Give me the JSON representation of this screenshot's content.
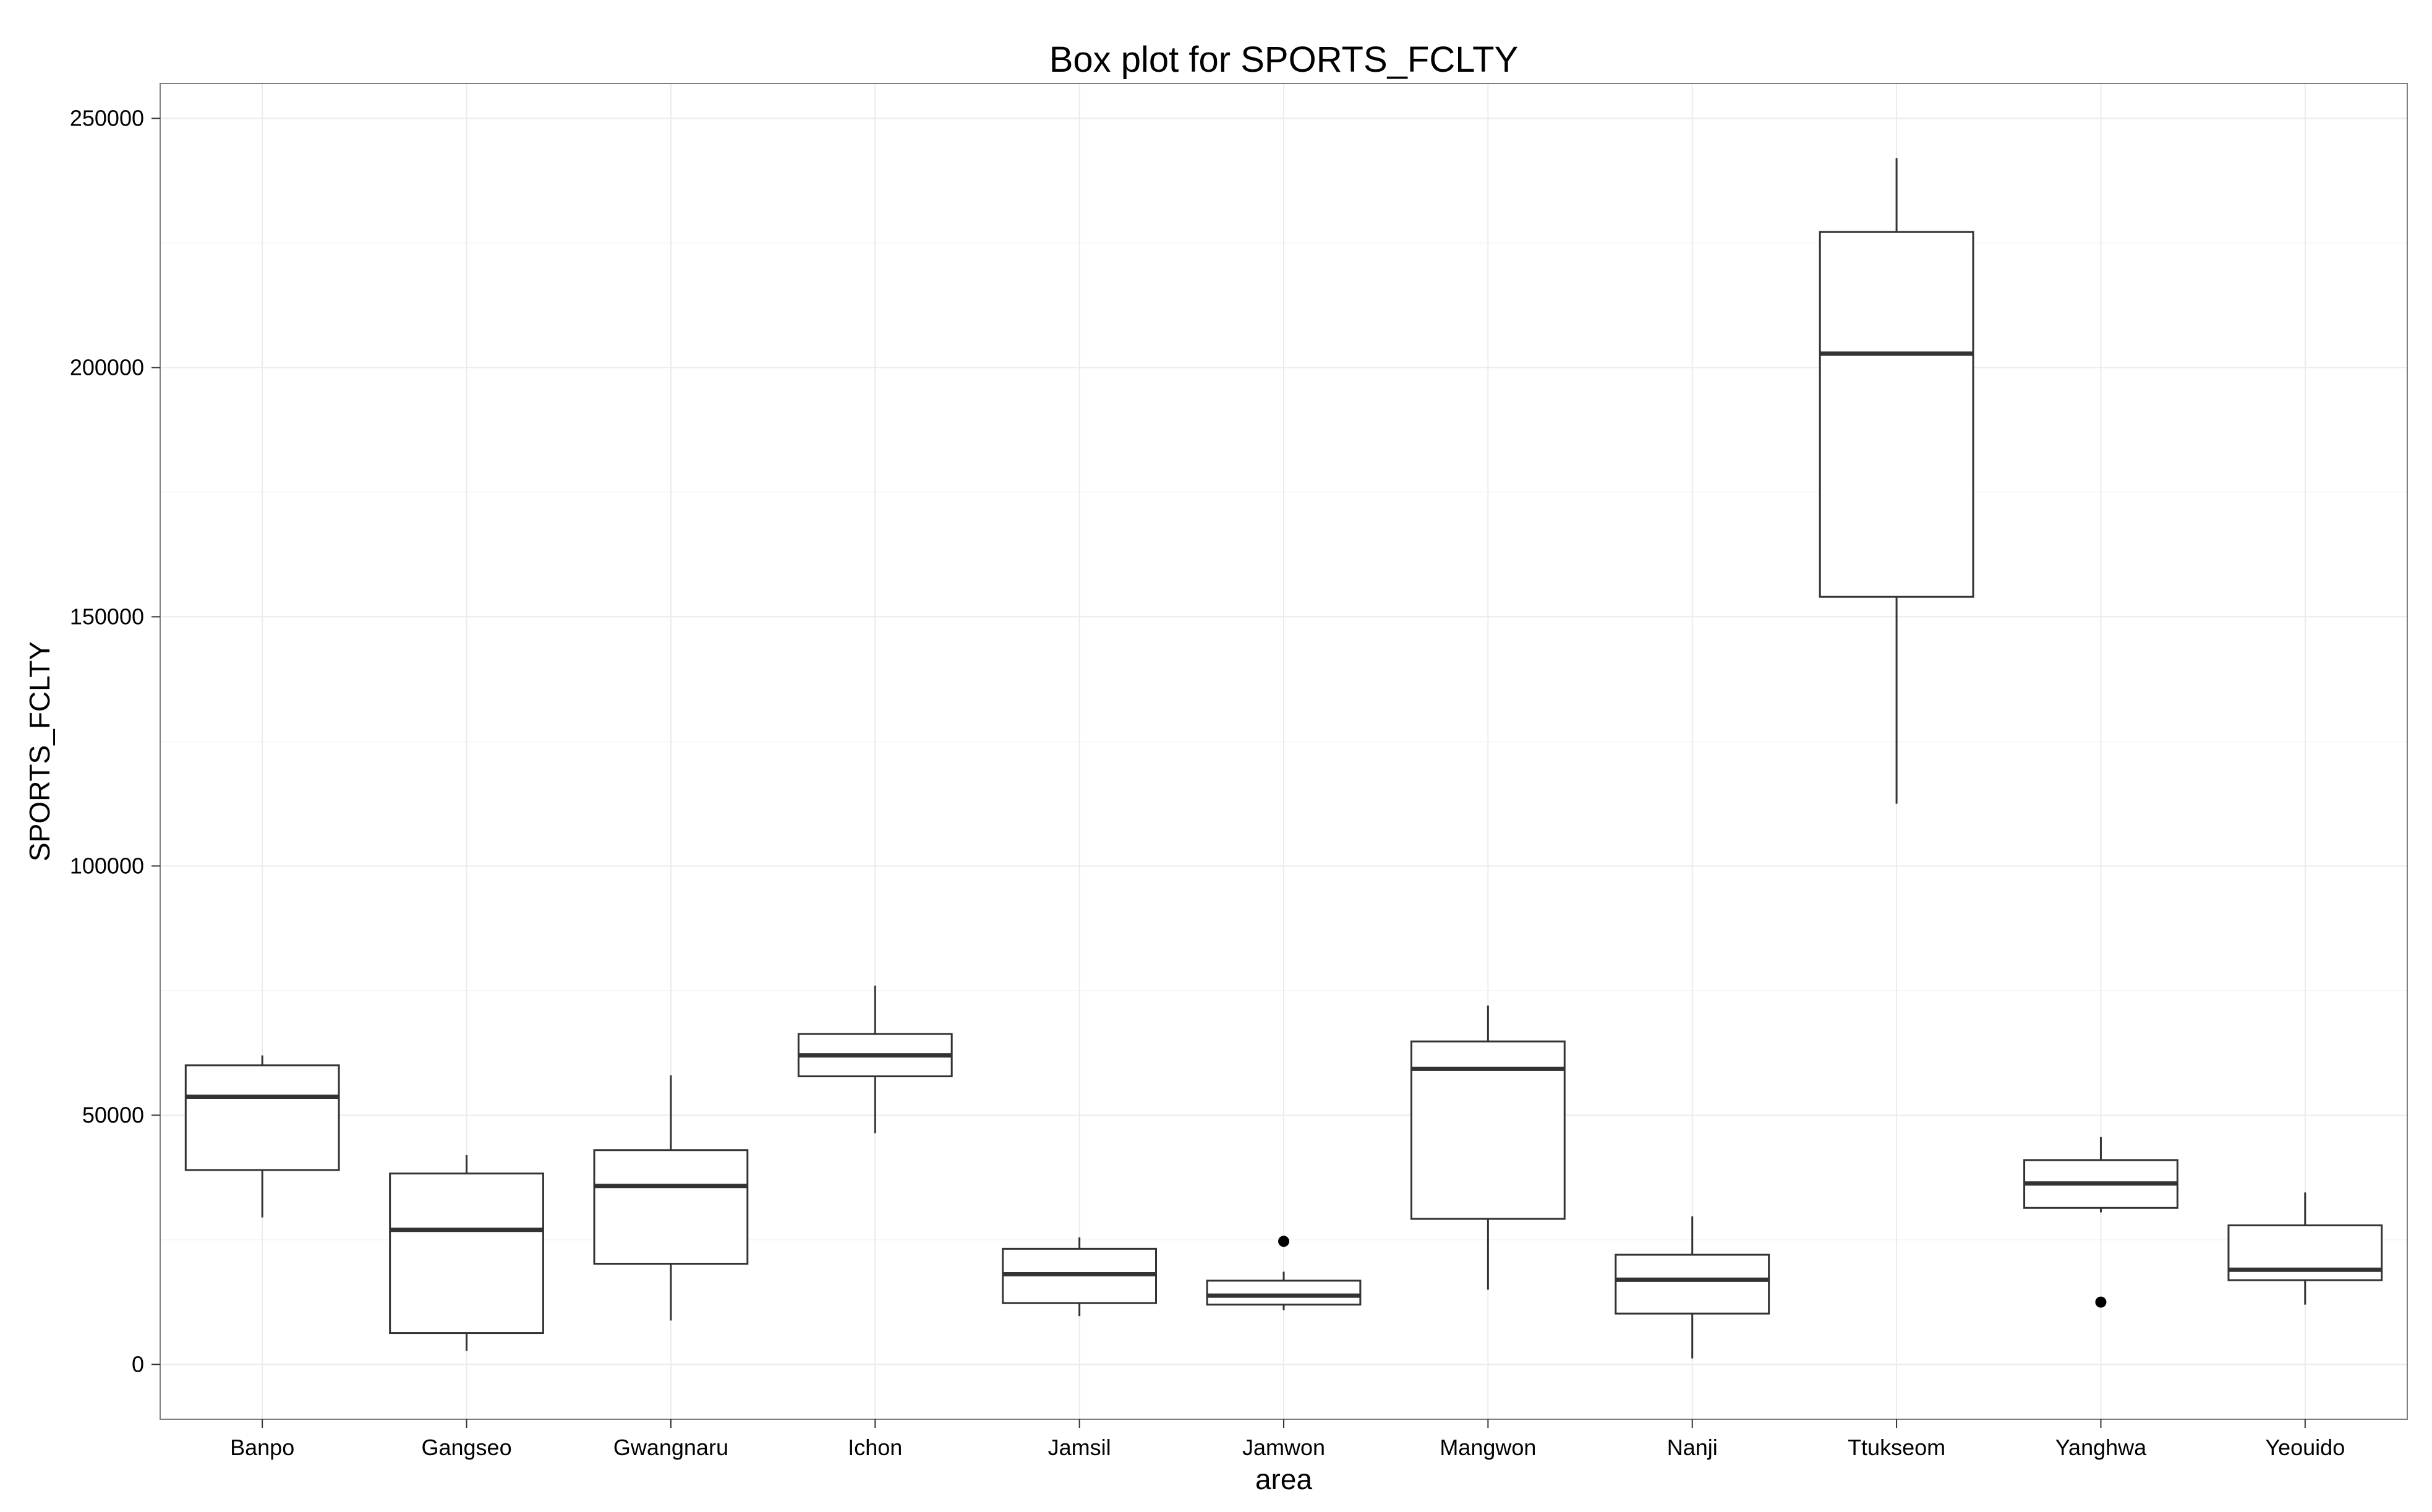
{
  "chart_data": {
    "type": "box",
    "title": "Box plot for SPORTS_FCLTY",
    "xlabel": "area",
    "ylabel": "SPORTS_FCLTY",
    "ylim": [
      -11000,
      257000
    ],
    "yticks": [
      0,
      50000,
      100000,
      150000,
      200000,
      250000
    ],
    "ytick_labels": [
      "0",
      "50000",
      "100000",
      "150000",
      "200000",
      "250000"
    ],
    "grid": true,
    "categories": [
      "Banpo",
      "Gangseo",
      "Gwangnaru",
      "Ichon",
      "Jamsil",
      "Jamwon",
      "Mangwon",
      "Nanji",
      "Ttukseom",
      "Yanghwa",
      "Yeouido"
    ],
    "boxes": [
      {
        "category": "Banpo",
        "whisker_low": 29500,
        "q1": 39000,
        "median": 53700,
        "q3": 60000,
        "whisker_high": 62000,
        "outliers": []
      },
      {
        "category": "Gangseo",
        "whisker_low": 2700,
        "q1": 6300,
        "median": 27000,
        "q3": 38300,
        "whisker_high": 42000,
        "outliers": []
      },
      {
        "category": "Gwangnaru",
        "whisker_low": 8800,
        "q1": 20200,
        "median": 35800,
        "q3": 43000,
        "whisker_high": 58000,
        "outliers": []
      },
      {
        "category": "Ichon",
        "whisker_low": 46400,
        "q1": 57800,
        "median": 62000,
        "q3": 66300,
        "whisker_high": 76000,
        "outliers": []
      },
      {
        "category": "Jamsil",
        "whisker_low": 9700,
        "q1": 12300,
        "median": 18100,
        "q3": 23200,
        "whisker_high": 25500,
        "outliers": []
      },
      {
        "category": "Jamwon",
        "whisker_low": 10900,
        "q1": 12000,
        "median": 13800,
        "q3": 16800,
        "whisker_high": 18600,
        "outliers": [
          24700
        ]
      },
      {
        "category": "Mangwon",
        "whisker_low": 15000,
        "q1": 29200,
        "median": 59300,
        "q3": 64800,
        "whisker_high": 72000,
        "outliers": []
      },
      {
        "category": "Nanji",
        "whisker_low": 1200,
        "q1": 10200,
        "median": 17000,
        "q3": 22000,
        "whisker_high": 29700,
        "outliers": []
      },
      {
        "category": "Ttukseom",
        "whisker_low": 112500,
        "q1": 154000,
        "median": 202800,
        "q3": 227200,
        "whisker_high": 242000,
        "outliers": []
      },
      {
        "category": "Yanghwa",
        "whisker_low": 30500,
        "q1": 31400,
        "median": 36300,
        "q3": 41000,
        "whisker_high": 45600,
        "outliers": [
          12500
        ]
      },
      {
        "category": "Yeouido",
        "whisker_low": 12000,
        "q1": 16900,
        "median": 19000,
        "q3": 27900,
        "whisker_high": 34500,
        "outliers": []
      }
    ],
    "colors": {
      "box_stroke": "#333333",
      "median": "#333333",
      "grid": "#ebebeb",
      "panel_border": "#7f7f7f",
      "background": "#ffffff"
    }
  }
}
